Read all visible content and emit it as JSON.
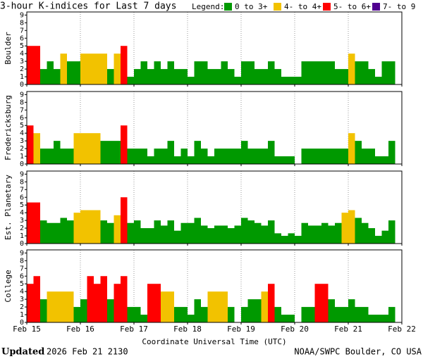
{
  "chart_data": [
    {
      "type": "bar",
      "title": "3-hour K-indices for Last 7 days",
      "legend_title": "Legend:",
      "legend": [
        {
          "label": "0 to 3+",
          "color": "#009900",
          "min": 0
        },
        {
          "label": "4- to 4+",
          "color": "#f2c200",
          "min": 3.67
        },
        {
          "label": "5- to 6+",
          "color": "#ff0000",
          "min": 4.67
        },
        {
          "label": "7- to 9",
          "color": "#500090",
          "min": 6.67
        }
      ],
      "xlabel": "Coordinate Universal Time (UTC)",
      "xlim": [
        0,
        7
      ],
      "xticks": [
        {
          "value": 0,
          "label": "Feb 15"
        },
        {
          "value": 1,
          "label": "Feb 16"
        },
        {
          "value": 2,
          "label": "Feb 17"
        },
        {
          "value": 3,
          "label": "Feb 18"
        },
        {
          "value": 4,
          "label": "Feb 19"
        },
        {
          "value": 5,
          "label": "Feb 20"
        },
        {
          "value": 6,
          "label": "Feb 21"
        },
        {
          "value": 7,
          "label": "Feb 22"
        }
      ],
      "ylim": [
        0,
        9.4
      ],
      "yticks": [
        0,
        1,
        2,
        3,
        4,
        5,
        6,
        7,
        8,
        9
      ],
      "grid": true,
      "series": [
        {
          "name": "Boulder",
          "values": [
            5,
            5,
            2,
            3,
            2,
            4,
            3,
            3,
            4,
            4,
            4,
            4,
            2,
            4,
            5,
            1,
            2,
            3,
            2,
            3,
            2,
            3,
            2,
            2,
            1,
            3,
            3,
            2,
            2,
            3,
            2,
            1,
            3,
            3,
            2,
            2,
            3,
            2,
            1,
            1,
            1,
            3,
            3,
            3,
            3,
            3,
            2,
            2,
            4,
            3,
            3,
            2,
            1,
            3,
            3,
            0
          ]
        },
        {
          "name": "Fredericksburg",
          "values": [
            5,
            4,
            2,
            2,
            3,
            2,
            2,
            4,
            4,
            4,
            4,
            3,
            3,
            3,
            5,
            2,
            2,
            2,
            1,
            2,
            2,
            3,
            1,
            2,
            1,
            3,
            2,
            1,
            2,
            2,
            2,
            2,
            3,
            2,
            2,
            2,
            3,
            1,
            1,
            1,
            0,
            2,
            2,
            2,
            2,
            2,
            2,
            2,
            4,
            3,
            2,
            2,
            1,
            1,
            3,
            0
          ]
        },
        {
          "name": "Est. Planetary",
          "values": [
            5.33,
            5.33,
            3,
            2.67,
            2.67,
            3.33,
            3,
            4,
            4.33,
            4.33,
            4.33,
            3,
            2.67,
            3.67,
            6,
            2.67,
            3,
            2,
            2,
            3,
            2.33,
            3,
            1.67,
            2.67,
            2.67,
            3.33,
            2.33,
            2,
            2.33,
            2.33,
            2,
            2.33,
            3.33,
            3,
            2.67,
            2.33,
            3,
            1.33,
            1,
            1.33,
            1,
            2.67,
            2.33,
            2.33,
            2.67,
            2.33,
            2.67,
            4,
            4.33,
            3.33,
            2.67,
            2,
            1,
            1.67,
            3,
            0
          ]
        },
        {
          "name": "College",
          "values": [
            5,
            6,
            3,
            4,
            4,
            4,
            4,
            2,
            3,
            6,
            5,
            6,
            3,
            5,
            6,
            2,
            2,
            1,
            5,
            5,
            4,
            4,
            2,
            2,
            1,
            3,
            2,
            4,
            4,
            4,
            2,
            0,
            2,
            3,
            3,
            4,
            5,
            2,
            1,
            1,
            0,
            2,
            2,
            5,
            5,
            3,
            2,
            2,
            3,
            2,
            2,
            1,
            1,
            1,
            2,
            0
          ]
        }
      ],
      "updated_label": "Updated",
      "updated_time": "2026 Feb 21 2130",
      "credit": "NOAA/SWPC Boulder, CO USA"
    }
  ]
}
